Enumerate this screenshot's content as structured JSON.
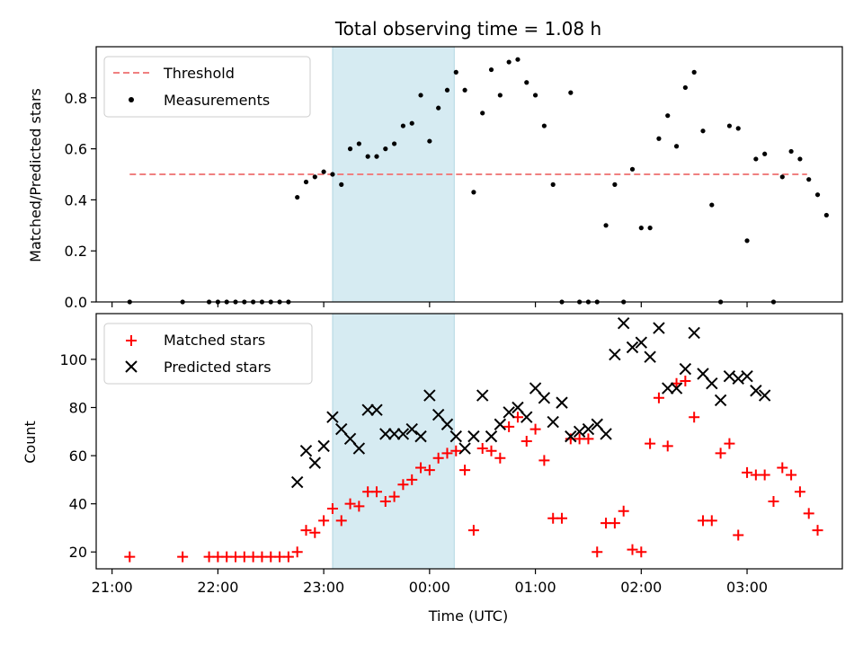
{
  "chart_data": [
    {
      "type": "scatter",
      "title": "Total observing time = 1.08 h",
      "xlabel": "",
      "ylabel": "Matched/Predicted stars",
      "xlim": [
        -0.15,
        6.9
      ],
      "ylim": [
        0,
        1.0
      ],
      "yticks": [
        0.0,
        0.2,
        0.4,
        0.6,
        0.8
      ],
      "ytick_labels": [
        "0.0",
        "0.2",
        "0.4",
        "0.6",
        "0.8"
      ],
      "highlight_span": [
        "23:05",
        "00:14"
      ],
      "threshold": {
        "name": "Threshold",
        "value": 0.5,
        "x_range": [
          "21:10",
          "03:34"
        ],
        "color": "#f08080"
      },
      "legend": {
        "position": "upper-left",
        "entries": [
          "Threshold",
          "Measurements"
        ]
      },
      "series": [
        {
          "name": "Measurements",
          "marker": "dot",
          "color": "#000000",
          "points": [
            [
              "21:10",
              0.0
            ],
            [
              "21:40",
              0.0
            ],
            [
              "21:55",
              0.0
            ],
            [
              "22:00",
              0.0
            ],
            [
              "22:05",
              0.0
            ],
            [
              "22:10",
              0.0
            ],
            [
              "22:15",
              0.0
            ],
            [
              "22:20",
              0.0
            ],
            [
              "22:25",
              0.0
            ],
            [
              "22:30",
              0.0
            ],
            [
              "22:35",
              0.0
            ],
            [
              "22:40",
              0.0
            ],
            [
              "22:45",
              0.41
            ],
            [
              "22:50",
              0.47
            ],
            [
              "22:55",
              0.49
            ],
            [
              "23:00",
              0.51
            ],
            [
              "23:05",
              0.5
            ],
            [
              "23:10",
              0.46
            ],
            [
              "23:15",
              0.6
            ],
            [
              "23:20",
              0.62
            ],
            [
              "23:25",
              0.57
            ],
            [
              "23:30",
              0.57
            ],
            [
              "23:35",
              0.6
            ],
            [
              "23:40",
              0.62
            ],
            [
              "23:45",
              0.69
            ],
            [
              "23:50",
              0.7
            ],
            [
              "23:55",
              0.81
            ],
            [
              "00:00",
              0.63
            ],
            [
              "00:05",
              0.76
            ],
            [
              "00:10",
              0.83
            ],
            [
              "00:15",
              0.9
            ],
            [
              "00:20",
              0.83
            ],
            [
              "00:25",
              0.43
            ],
            [
              "00:30",
              0.74
            ],
            [
              "00:35",
              0.91
            ],
            [
              "00:40",
              0.81
            ],
            [
              "00:45",
              0.94
            ],
            [
              "00:50",
              0.95
            ],
            [
              "00:55",
              0.86
            ],
            [
              "01:00",
              0.81
            ],
            [
              "01:05",
              0.69
            ],
            [
              "01:10",
              0.46
            ],
            [
              "01:15",
              0.0
            ],
            [
              "01:20",
              0.82
            ],
            [
              "01:25",
              0.0
            ],
            [
              "01:30",
              0.0
            ],
            [
              "01:35",
              0.0
            ],
            [
              "01:40",
              0.3
            ],
            [
              "01:45",
              0.46
            ],
            [
              "01:50",
              0.0
            ],
            [
              "01:55",
              0.52
            ],
            [
              "02:00",
              0.29
            ],
            [
              "02:05",
              0.29
            ],
            [
              "02:10",
              0.64
            ],
            [
              "02:15",
              0.73
            ],
            [
              "02:20",
              0.61
            ],
            [
              "02:25",
              0.84
            ],
            [
              "02:30",
              0.9
            ],
            [
              "02:35",
              0.67
            ],
            [
              "02:40",
              0.38
            ],
            [
              "02:45",
              0.0
            ],
            [
              "02:50",
              0.69
            ],
            [
              "02:55",
              0.68
            ],
            [
              "03:00",
              0.24
            ],
            [
              "03:05",
              0.56
            ],
            [
              "03:10",
              0.58
            ],
            [
              "03:15",
              0.0
            ],
            [
              "03:20",
              0.49
            ],
            [
              "03:25",
              0.59
            ],
            [
              "03:30",
              0.56
            ],
            [
              "03:35",
              0.48
            ],
            [
              "03:40",
              0.42
            ],
            [
              "03:45",
              0.34
            ]
          ]
        }
      ]
    },
    {
      "type": "scatter",
      "title": "",
      "xlabel": "Time (UTC)",
      "ylabel": "Count",
      "xlim": [
        -0.15,
        6.9
      ],
      "ylim": [
        13,
        119
      ],
      "yticks": [
        20,
        40,
        60,
        80,
        100
      ],
      "ytick_labels": [
        "20",
        "40",
        "60",
        "80",
        "100"
      ],
      "xticks": [
        "21:00",
        "22:00",
        "23:00",
        "00:00",
        "01:00",
        "02:00",
        "03:00"
      ],
      "highlight_span": [
        "23:05",
        "00:14"
      ],
      "legend": {
        "position": "upper-left",
        "entries": [
          "Matched stars",
          "Predicted stars"
        ]
      },
      "series": [
        {
          "name": "Matched stars",
          "marker": "plus",
          "color": "#ff0000",
          "points": [
            [
              "21:10",
              18
            ],
            [
              "21:40",
              18
            ],
            [
              "21:55",
              18
            ],
            [
              "22:00",
              18
            ],
            [
              "22:05",
              18
            ],
            [
              "22:10",
              18
            ],
            [
              "22:15",
              18
            ],
            [
              "22:20",
              18
            ],
            [
              "22:25",
              18
            ],
            [
              "22:30",
              18
            ],
            [
              "22:35",
              18
            ],
            [
              "22:40",
              18
            ],
            [
              "22:45",
              20
            ],
            [
              "22:50",
              29
            ],
            [
              "22:55",
              28
            ],
            [
              "23:00",
              33
            ],
            [
              "23:05",
              38
            ],
            [
              "23:10",
              33
            ],
            [
              "23:15",
              40
            ],
            [
              "23:20",
              39
            ],
            [
              "23:25",
              45
            ],
            [
              "23:30",
              45
            ],
            [
              "23:35",
              41
            ],
            [
              "23:40",
              43
            ],
            [
              "23:45",
              48
            ],
            [
              "23:50",
              50
            ],
            [
              "23:55",
              55
            ],
            [
              "00:00",
              54
            ],
            [
              "00:05",
              59
            ],
            [
              "00:10",
              61
            ],
            [
              "00:15",
              62
            ],
            [
              "00:20",
              54
            ],
            [
              "00:25",
              29
            ],
            [
              "00:30",
              63
            ],
            [
              "00:35",
              62
            ],
            [
              "00:40",
              59
            ],
            [
              "00:45",
              72
            ],
            [
              "00:50",
              76
            ],
            [
              "00:55",
              66
            ],
            [
              "01:00",
              71
            ],
            [
              "01:05",
              58
            ],
            [
              "01:10",
              34
            ],
            [
              "01:15",
              34
            ],
            [
              "01:20",
              67
            ],
            [
              "01:25",
              67
            ],
            [
              "01:30",
              67
            ],
            [
              "01:35",
              20
            ],
            [
              "01:40",
              32
            ],
            [
              "01:45",
              32
            ],
            [
              "01:50",
              37
            ],
            [
              "01:55",
              21
            ],
            [
              "02:00",
              20
            ],
            [
              "02:05",
              65
            ],
            [
              "02:10",
              84
            ],
            [
              "02:15",
              64
            ],
            [
              "02:20",
              90
            ],
            [
              "02:25",
              91
            ],
            [
              "02:30",
              76
            ],
            [
              "02:35",
              33
            ],
            [
              "02:40",
              33
            ],
            [
              "02:45",
              61
            ],
            [
              "02:50",
              65
            ],
            [
              "02:55",
              27
            ],
            [
              "03:00",
              53
            ],
            [
              "03:05",
              52
            ],
            [
              "03:10",
              52
            ],
            [
              "03:15",
              41
            ],
            [
              "03:20",
              55
            ],
            [
              "03:25",
              52
            ],
            [
              "03:30",
              45
            ],
            [
              "03:35",
              36
            ],
            [
              "03:40",
              29
            ]
          ]
        },
        {
          "name": "Predicted stars",
          "marker": "x",
          "color": "#000000",
          "points": [
            [
              "22:45",
              49
            ],
            [
              "22:50",
              62
            ],
            [
              "22:55",
              57
            ],
            [
              "23:00",
              64
            ],
            [
              "23:05",
              76
            ],
            [
              "23:10",
              71
            ],
            [
              "23:15",
              67
            ],
            [
              "23:20",
              63
            ],
            [
              "23:25",
              79
            ],
            [
              "23:30",
              79
            ],
            [
              "23:35",
              69
            ],
            [
              "23:40",
              69
            ],
            [
              "23:45",
              69
            ],
            [
              "23:50",
              71
            ],
            [
              "23:55",
              68
            ],
            [
              "00:00",
              85
            ],
            [
              "00:05",
              77
            ],
            [
              "00:10",
              73
            ],
            [
              "00:15",
              68
            ],
            [
              "00:20",
              63
            ],
            [
              "00:25",
              68
            ],
            [
              "00:30",
              85
            ],
            [
              "00:35",
              68
            ],
            [
              "00:40",
              73
            ],
            [
              "00:45",
              78
            ],
            [
              "00:50",
              80
            ],
            [
              "00:55",
              76
            ],
            [
              "01:00",
              88
            ],
            [
              "01:05",
              84
            ],
            [
              "01:10",
              74
            ],
            [
              "01:15",
              82
            ],
            [
              "01:20",
              68
            ],
            [
              "01:25",
              70
            ],
            [
              "01:30",
              71
            ],
            [
              "01:35",
              73
            ],
            [
              "01:40",
              69
            ],
            [
              "01:45",
              102
            ],
            [
              "01:50",
              115
            ],
            [
              "01:55",
              105
            ],
            [
              "02:00",
              107
            ],
            [
              "02:05",
              101
            ],
            [
              "02:10",
              113
            ],
            [
              "02:15",
              88
            ],
            [
              "02:20",
              88
            ],
            [
              "02:25",
              96
            ],
            [
              "02:30",
              111
            ],
            [
              "02:35",
              94
            ],
            [
              "02:40",
              90
            ],
            [
              "02:45",
              83
            ],
            [
              "02:50",
              93
            ],
            [
              "02:55",
              92
            ],
            [
              "03:00",
              93
            ],
            [
              "03:05",
              87
            ],
            [
              "03:10",
              85
            ]
          ]
        }
      ]
    }
  ]
}
